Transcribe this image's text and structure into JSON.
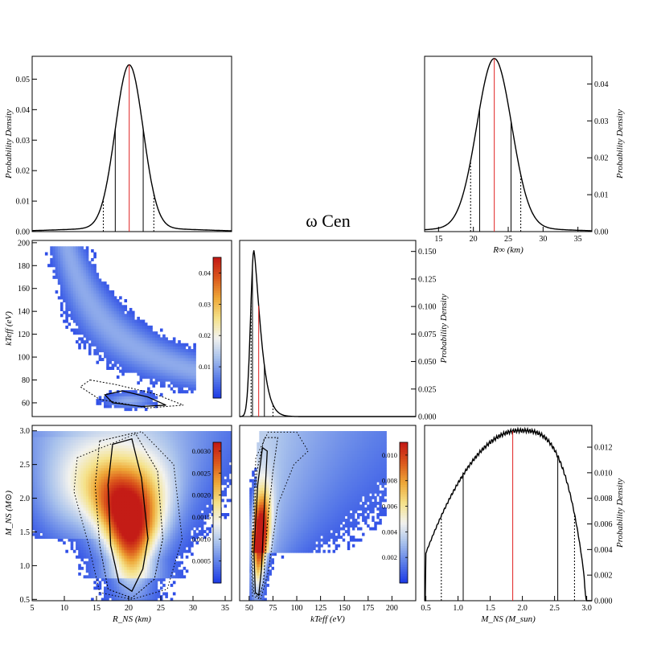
{
  "figure": {
    "title": "ω Cen",
    "colors": {
      "curve": "#000000",
      "median": "#e02020",
      "colormap": [
        "#1e3ce6",
        "#5d7fe8",
        "#a9c2ec",
        "#f2f2ee",
        "#f5e28a",
        "#eea838",
        "#dc5a1c",
        "#c41c16"
      ]
    }
  },
  "chart_data": [
    {
      "id": "R_hist",
      "type": "line",
      "xlabel": "",
      "ylabel": "Probability Density",
      "ylabel_side": "left",
      "xlim": [
        5,
        35
      ],
      "ylim": [
        0,
        0.0575
      ],
      "xticks": [],
      "yticks": [
        0,
        0.01,
        0.02,
        0.03,
        0.04,
        0.05
      ],
      "ytick_labels": [
        "0.00",
        "0.01",
        "0.02",
        "0.03",
        "0.04",
        "0.05"
      ],
      "curve": {
        "type": "gauss_tail",
        "mu": 19.6,
        "sigma": 2.1,
        "peak": 0.0535,
        "tail_amp": 0.0012,
        "tail_sigma": 9
      },
      "median": 19.6,
      "sigma1": [
        17.5,
        21.7
      ],
      "sigma2": [
        15.7,
        23.3
      ]
    },
    {
      "id": "Rinf_hist",
      "type": "line",
      "xlabel": "R∞ (km)",
      "ylabel": "Probability Density",
      "ylabel_side": "right",
      "xlim": [
        13,
        37
      ],
      "ylim": [
        0,
        0.0475
      ],
      "xticks": [
        15,
        20,
        25,
        30,
        35
      ],
      "xtick_labels": [
        "15",
        "20",
        "25",
        "30",
        "35"
      ],
      "yticks": [
        0,
        0.01,
        0.02,
        0.03,
        0.04
      ],
      "ytick_labels": [
        "0.00",
        "0.01",
        "0.02",
        "0.03",
        "0.04"
      ],
      "curve": {
        "type": "gauss_tail",
        "mu": 23.0,
        "sigma": 2.5,
        "peak": 0.0458,
        "tail_amp": 0.0011,
        "tail_sigma": 8
      },
      "median": 23.0,
      "sigma1": [
        20.9,
        25.4
      ],
      "sigma2": [
        19.6,
        26.8
      ]
    },
    {
      "id": "kT_hist",
      "type": "line",
      "xlabel": "",
      "ylabel": "Probability Density",
      "ylabel_side": "right",
      "xlim": [
        40,
        225
      ],
      "ylim": [
        0,
        0.16
      ],
      "xticks": [],
      "yticks": [
        0,
        0.025,
        0.05,
        0.075,
        0.1,
        0.125,
        0.15
      ],
      "ytick_labels": [
        "0.000",
        "0.025",
        "0.050",
        "0.075",
        "0.100",
        "0.125",
        "0.150"
      ],
      "curve": {
        "type": "skew",
        "mode": 55,
        "peak": 0.151,
        "left_sigma": 3.5,
        "right_sigma": 9
      },
      "median": 60,
      "sigma1": [
        53.5,
        66
      ],
      "sigma2": [
        52,
        75
      ]
    },
    {
      "id": "kT_vs_R",
      "type": "heatmap",
      "xlabel": "",
      "ylabel": "kTeff (eV)",
      "xlim": [
        5,
        36
      ],
      "ylim": [
        48,
        202
      ],
      "xticks": [],
      "yticks": [
        60,
        80,
        100,
        120,
        140,
        160,
        180,
        200
      ],
      "ytick_labels": [
        "60",
        "80",
        "100",
        "120",
        "140",
        "160",
        "180",
        "200"
      ],
      "colorbar": {
        "max": 0.045,
        "ticks": [
          0.01,
          0.02,
          0.03,
          0.04
        ],
        "tick_labels": [
          "0.01",
          "0.02",
          "0.03",
          "0.04"
        ]
      }
    },
    {
      "id": "M_vs_R",
      "type": "heatmap",
      "xlabel": "R_NS (km)",
      "ylabel": "M_NS (M⊙)",
      "xlim": [
        5,
        36
      ],
      "ylim": [
        0.48,
        3.08
      ],
      "xticks": [
        5,
        10,
        15,
        20,
        25,
        30,
        35
      ],
      "xtick_labels": [
        "5",
        "10",
        "15",
        "20",
        "25",
        "30",
        "35"
      ],
      "yticks": [
        0.5,
        1.0,
        1.5,
        2.0,
        2.5,
        3.0
      ],
      "ytick_labels": [
        "0.5",
        "1.0",
        "1.5",
        "2.0",
        "2.5",
        "3.0"
      ],
      "colorbar": {
        "max": 0.0032,
        "ticks": [
          0.0005,
          0.001,
          0.0015,
          0.002,
          0.0025,
          0.003
        ],
        "tick_labels": [
          "0.0005",
          "0.0010",
          "0.0015",
          "0.0020",
          "0.0025",
          "0.0030"
        ]
      }
    },
    {
      "id": "M_vs_kT",
      "type": "heatmap",
      "xlabel": "kTeff (eV)",
      "ylabel": "",
      "xlim": [
        40,
        225
      ],
      "ylim": [
        0.48,
        3.08
      ],
      "xticks": [
        50,
        75,
        100,
        125,
        150,
        175,
        200
      ],
      "xtick_labels": [
        "50",
        "75",
        "100",
        "125",
        "150",
        "175",
        "200"
      ],
      "yticks": [],
      "colorbar": {
        "max": 0.011,
        "ticks": [
          0.002,
          0.004,
          0.006,
          0.008,
          0.01
        ],
        "tick_labels": [
          "0.002",
          "0.004",
          "0.006",
          "0.008",
          "0.010"
        ]
      }
    },
    {
      "id": "M_hist",
      "type": "line",
      "xlabel": "M_NS (M_sun)",
      "ylabel": "Probability Density",
      "ylabel_side": "right",
      "xlim": [
        0.48,
        3.08
      ],
      "ylim": [
        0,
        0.0137
      ],
      "xticks": [
        0.5,
        1.0,
        1.5,
        2.0,
        2.5,
        3.0
      ],
      "xtick_labels": [
        "0.5",
        "1.0",
        "1.5",
        "2.0",
        "2.5",
        "3.0"
      ],
      "yticks": [
        0,
        0.002,
        0.004,
        0.006,
        0.008,
        0.01,
        0.012
      ],
      "ytick_labels": [
        "0.000",
        "0.002",
        "0.004",
        "0.006",
        "0.008",
        "0.010",
        "0.012"
      ],
      "curve": {
        "type": "broad",
        "lo": 0.5,
        "hi": 3.0,
        "peak_x": 1.95,
        "peak": 0.0133
      },
      "median": 1.85,
      "sigma1": [
        1.08,
        2.55
      ],
      "sigma2": [
        0.74,
        2.81
      ]
    }
  ]
}
